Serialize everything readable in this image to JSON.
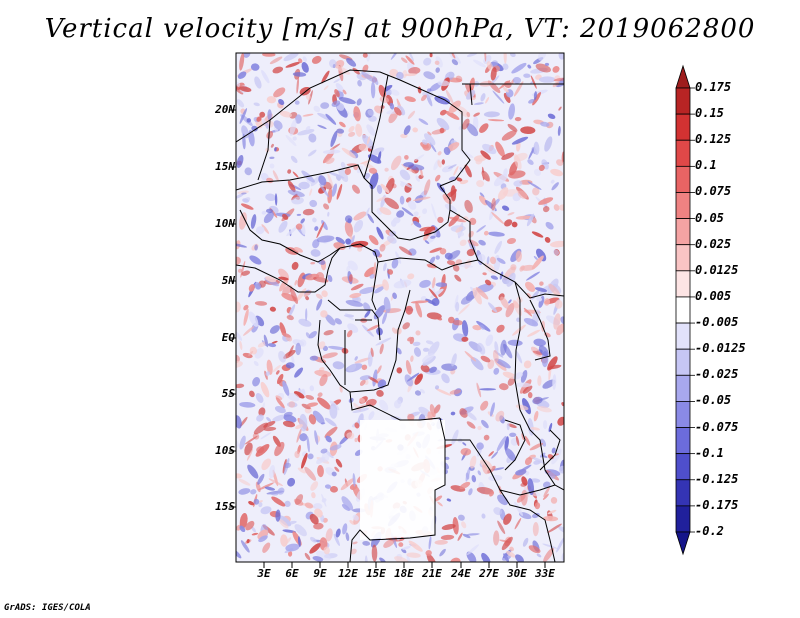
{
  "title": "Vertical velocity [m/s] at 900hPa, VT: 2019062800",
  "lat_labels": [
    "20N",
    "15N",
    "10N",
    "5N",
    "EQ",
    "5S",
    "10S",
    "15S"
  ],
  "lon_labels": [
    "3E",
    "6E",
    "9E",
    "12E",
    "15E",
    "18E",
    "21E",
    "24E",
    "27E",
    "30E",
    "33E"
  ],
  "colorbar": {
    "labels": [
      "0.175",
      "0.15",
      "0.125",
      "0.1",
      "0.075",
      "0.05",
      "0.025",
      "0.0125",
      "0.005",
      "-0.005",
      "-0.0125",
      "-0.025",
      "-0.05",
      "-0.075",
      "-0.1",
      "-0.125",
      "-0.175",
      "-0.2"
    ],
    "colors": [
      "#9e1d1d",
      "#b82424",
      "#d23232",
      "#e04848",
      "#e86464",
      "#ef8282",
      "#f5a3a3",
      "#f9c4c4",
      "#fde4e4",
      "#ffffff",
      "#e2e2fb",
      "#c6c6f5",
      "#a8a8ee",
      "#8a8ae6",
      "#6c6cdc",
      "#4f4fcc",
      "#3434b4",
      "#20209c",
      "#15158a"
    ]
  },
  "credit": "GrADS: IGES/COLA"
}
